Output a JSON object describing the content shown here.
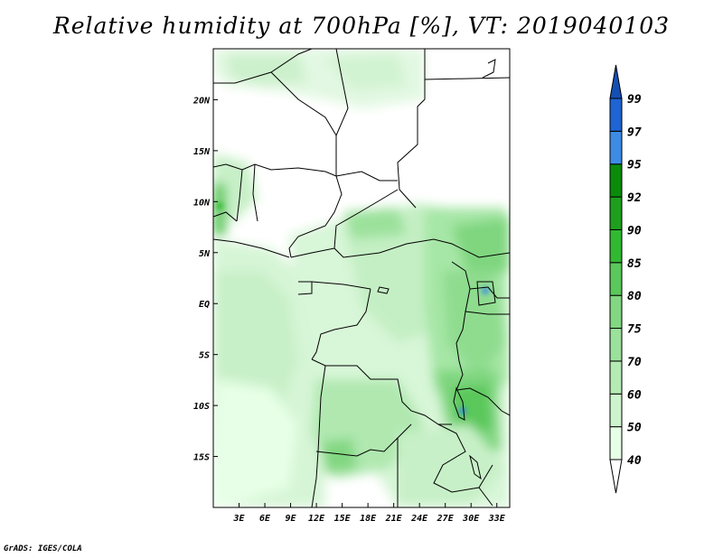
{
  "title": "Relative humidity at 700hPa [%], VT: 2019040103",
  "credit": "GrADS: IGES/COLA",
  "map": {
    "lon_range": [
      0,
      34.5
    ],
    "lat_range": [
      -20,
      25
    ],
    "lon_ticks": [
      {
        "value": 3,
        "label": "3E"
      },
      {
        "value": 6,
        "label": "6E"
      },
      {
        "value": 9,
        "label": "9E"
      },
      {
        "value": 12,
        "label": "12E"
      },
      {
        "value": 15,
        "label": "15E"
      },
      {
        "value": 18,
        "label": "18E"
      },
      {
        "value": 21,
        "label": "21E"
      },
      {
        "value": 24,
        "label": "24E"
      },
      {
        "value": 27,
        "label": "27E"
      },
      {
        "value": 30,
        "label": "30E"
      },
      {
        "value": 33,
        "label": "33E"
      }
    ],
    "lat_ticks": [
      {
        "value": 20,
        "label": "20N"
      },
      {
        "value": 15,
        "label": "15N"
      },
      {
        "value": 10,
        "label": "10N"
      },
      {
        "value": 5,
        "label": "5N"
      },
      {
        "value": 0,
        "label": "EQ"
      },
      {
        "value": -5,
        "label": "5S"
      },
      {
        "value": -10,
        "label": "10S"
      },
      {
        "value": -15,
        "label": "15S"
      }
    ]
  },
  "colorbar": {
    "levels": [
      "40",
      "50",
      "60",
      "70",
      "75",
      "80",
      "85",
      "90",
      "92",
      "95",
      "97",
      "99"
    ],
    "colors": [
      "#ffffff",
      "#e6ffe6",
      "#cdf5cd",
      "#b4ebb4",
      "#9be19b",
      "#82d782",
      "#5ac85a",
      "#32b932",
      "#1ea01e",
      "#0a8c0a",
      "#3c8ce6",
      "#1e64d2",
      "#1450b4"
    ]
  }
}
